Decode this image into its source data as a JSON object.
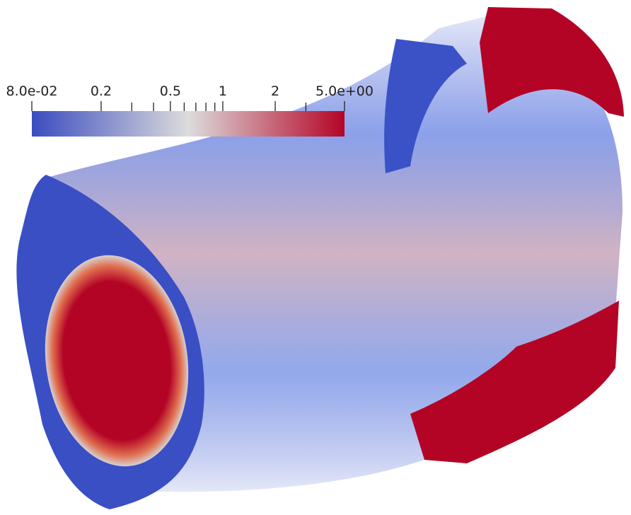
{
  "colorbar": {
    "scale": "log",
    "range": [
      0.08,
      5
    ],
    "ticks": [
      {
        "value": 0.08,
        "label": "8.0e-02"
      },
      0.2,
      0.5,
      1,
      2,
      {
        "value": 5,
        "label": "5.0e+00"
      }
    ],
    "minor_ticks": [
      0.3,
      0.4,
      0.6,
      0.7,
      0.8,
      0.9,
      3
    ],
    "colormap": [
      "#3b4cc0",
      "#dcdcdc",
      "#b40426"
    ]
  }
}
